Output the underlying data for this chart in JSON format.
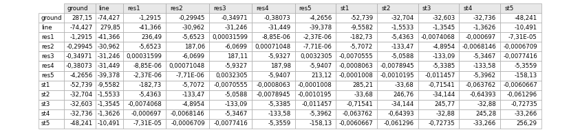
{
  "headers": [
    "ground",
    "line",
    "res1",
    "res2",
    "res3",
    "res4",
    "res5",
    "st1",
    "st2",
    "st3",
    "st4",
    "st5"
  ],
  "row_labels": [
    "ground",
    "line",
    "res1",
    "res2",
    "res3",
    "res4",
    "res5",
    "st1",
    "st2",
    "st3",
    "st4",
    "st5"
  ],
  "rows": [
    [
      "287,15",
      "-74,427",
      "-1,2915",
      "-0,29945",
      "-0,34971",
      "-0,38073",
      "-4,2656",
      "-52,739",
      "-32,704",
      "-32,603",
      "-32,736",
      "-48,241"
    ],
    [
      "-74,427",
      "279,85",
      "-41,366",
      "-30,962",
      "-31,246",
      "-31,449",
      "-39,378",
      "-9,5582",
      "-1,5533",
      "-1,3545",
      "-1,3626",
      "-10,491"
    ],
    [
      "-1,2915",
      "-41,366",
      "236,49",
      "-5,6523",
      "0,00031599",
      "-8,85E-06",
      "-2,37E-06",
      "-182,73",
      "-5,4363",
      "-0,0074068",
      "-0,000697",
      "-7,31E-05"
    ],
    [
      "-0,29945",
      "-30,962",
      "-5,6523",
      "187,06",
      "-6,0699",
      "0,00071048",
      "-7,71E-06",
      "-5,7072",
      "-133,47",
      "-4,8954",
      "-0,0068146",
      "-0,0006709"
    ],
    [
      "-0,34971",
      "-31,246",
      "0,00031599",
      "-6,0699",
      "187,11",
      "-5,9327",
      "0,0032305",
      "-0,0070555",
      "-5,0588",
      "-133,09",
      "-5,3467",
      "-0,0077416"
    ],
    [
      "-0,38073",
      "-31,449",
      "-8,85E-06",
      "0,00071048",
      "-5,9327",
      "187,98",
      "-5,9407",
      "-0,0008063",
      "-0,0078945",
      "-5,3385",
      "-133,58",
      "-5,3559"
    ],
    [
      "-4,2656",
      "-39,378",
      "-2,37E-06",
      "-7,71E-06",
      "0,0032305",
      "-5,9407",
      "213,12",
      "-0,0001008",
      "-0,0010195",
      "-0,011457",
      "-5,3962",
      "-158,13"
    ],
    [
      "-52,739",
      "-9,5582",
      "-182,73",
      "-5,7072",
      "-0,0070555",
      "-0,0008063",
      "-0,0001008",
      "285,21",
      "-33,68",
      "-0,71541",
      "-0,063762",
      "-0,0060667"
    ],
    [
      "-32,704",
      "-1,5533",
      "-5,4363",
      "-133,47",
      "-5,0588",
      "-0,0078945",
      "-0,0010195",
      "-33,68",
      "246,76",
      "-34,144",
      "-0,64393",
      "-0,061296"
    ],
    [
      "-32,603",
      "-1,3545",
      "-0,0074068",
      "-4,8954",
      "-133,09",
      "-5,3385",
      "-0,011457",
      "-0,71541",
      "-34,144",
      "245,77",
      "-32,88",
      "-0,72735"
    ],
    [
      "-32,736",
      "-1,3626",
      "-0,000697",
      "-0,0068146",
      "-5,3467",
      "-133,58",
      "-5,3962",
      "-0,063762",
      "-0,64393",
      "-32,88",
      "245,28",
      "-33,266"
    ],
    [
      "-48,241",
      "-10,491",
      "-7,31E-05",
      "-0,0006709",
      "-0,0077416",
      "-5,3559",
      "-158,13",
      "-0,0060667",
      "-0,061296",
      "-0,72735",
      "-33,266",
      "256,29"
    ]
  ],
  "header_bg": "#e8e8e8",
  "row_label_bg": "#ffffff",
  "data_bg": "#ffffff",
  "border_color": "#aaaaaa",
  "font_size": 6.2,
  "fig_width": 8.43,
  "fig_height": 1.93,
  "dpi": 100
}
